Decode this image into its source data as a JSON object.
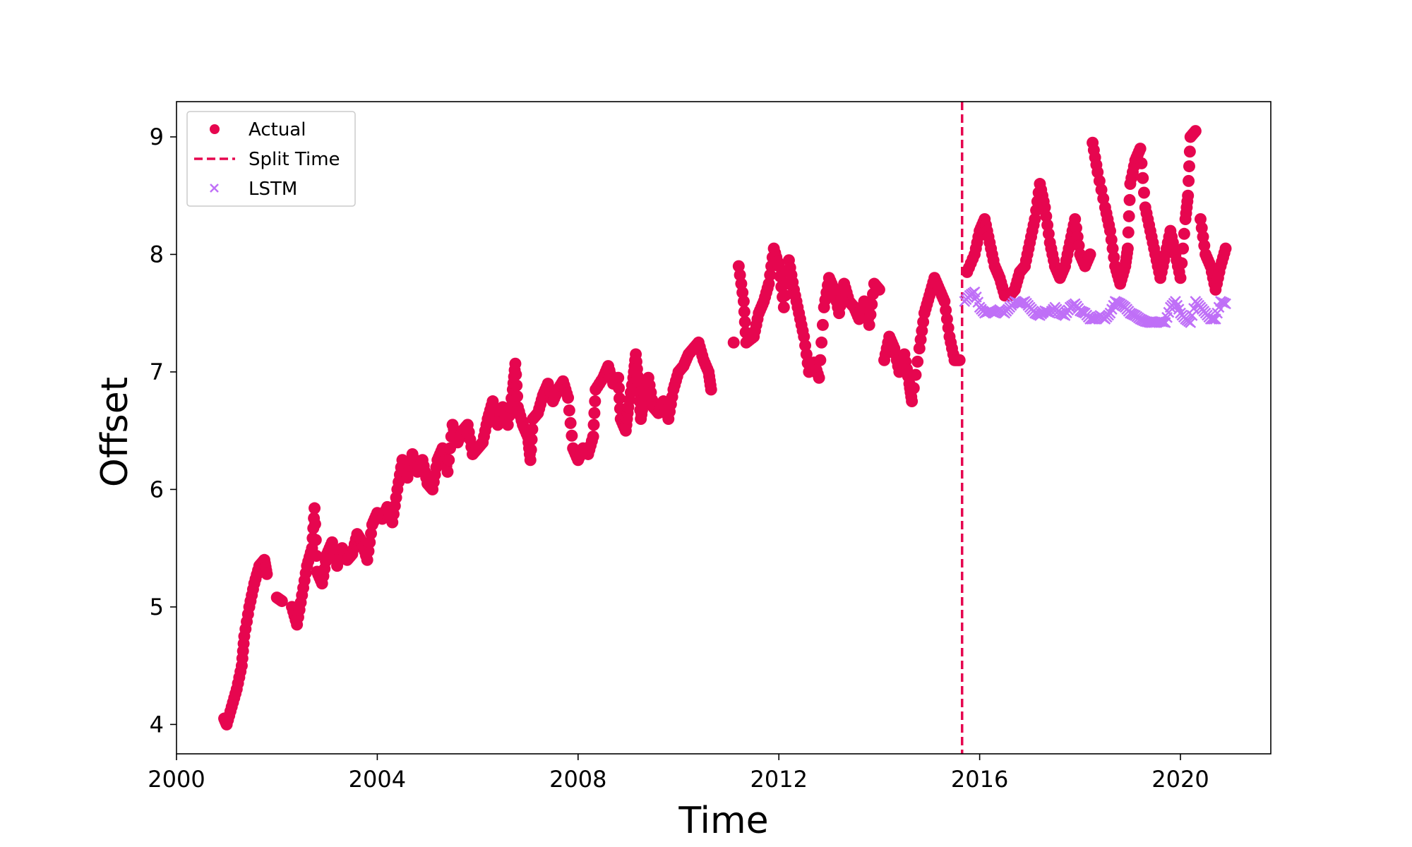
{
  "chart_data": {
    "type": "scatter",
    "title": "",
    "xlabel": "Time",
    "ylabel": "Offset",
    "xlim": [
      2000.0,
      2021.8
    ],
    "ylim": [
      3.75,
      9.3
    ],
    "xticks": [
      2000,
      2004,
      2008,
      2012,
      2016,
      2020
    ],
    "xtick_labels": [
      "2000",
      "2004",
      "2008",
      "2012",
      "2016",
      "2020"
    ],
    "yticks": [
      4,
      5,
      6,
      7,
      8,
      9
    ],
    "ytick_labels": [
      "4",
      "5",
      "6",
      "7",
      "8",
      "9"
    ],
    "grid": false,
    "legend_placement": "top-left",
    "split_time": 2015.65,
    "colors": {
      "actual": "#e6064f",
      "split": "#e6064f",
      "lstm": "#bf6ff7"
    },
    "series": [
      {
        "name": "Actual",
        "marker": "circle",
        "points": [
          [
            2000.95,
            4.05
          ],
          [
            2001.0,
            4.0
          ],
          [
            2001.1,
            4.15
          ],
          [
            2001.2,
            4.3
          ],
          [
            2001.3,
            4.5
          ],
          [
            2001.35,
            4.75
          ],
          [
            2001.45,
            5.0
          ],
          [
            2001.55,
            5.2
          ],
          [
            2001.65,
            5.35
          ],
          [
            2001.75,
            5.4
          ],
          [
            2001.8,
            5.28
          ],
          [
            2002.0,
            5.08
          ],
          [
            2002.1,
            5.05
          ],
          [
            2002.3,
            5.0
          ],
          [
            2002.4,
            4.85
          ],
          [
            2002.5,
            5.1
          ],
          [
            2002.6,
            5.35
          ],
          [
            2002.7,
            5.5
          ],
          [
            2002.75,
            5.84
          ],
          [
            2002.8,
            5.3
          ],
          [
            2002.9,
            5.2
          ],
          [
            2003.0,
            5.45
          ],
          [
            2003.1,
            5.55
          ],
          [
            2003.2,
            5.35
          ],
          [
            2003.3,
            5.5
          ],
          [
            2003.4,
            5.4
          ],
          [
            2003.5,
            5.45
          ],
          [
            2003.6,
            5.62
          ],
          [
            2003.7,
            5.55
          ],
          [
            2003.8,
            5.4
          ],
          [
            2003.9,
            5.7
          ],
          [
            2004.0,
            5.8
          ],
          [
            2004.1,
            5.75
          ],
          [
            2004.2,
            5.85
          ],
          [
            2004.3,
            5.72
          ],
          [
            2004.4,
            6.0
          ],
          [
            2004.5,
            6.25
          ],
          [
            2004.6,
            6.1
          ],
          [
            2004.7,
            6.3
          ],
          [
            2004.8,
            6.15
          ],
          [
            2004.9,
            6.25
          ],
          [
            2005.0,
            6.05
          ],
          [
            2005.1,
            6.0
          ],
          [
            2005.2,
            6.25
          ],
          [
            2005.3,
            6.35
          ],
          [
            2005.4,
            6.15
          ],
          [
            2005.5,
            6.55
          ],
          [
            2005.6,
            6.4
          ],
          [
            2005.7,
            6.5
          ],
          [
            2005.8,
            6.55
          ],
          [
            2005.9,
            6.3
          ],
          [
            2006.0,
            6.35
          ],
          [
            2006.1,
            6.4
          ],
          [
            2006.2,
            6.6
          ],
          [
            2006.3,
            6.75
          ],
          [
            2006.4,
            6.55
          ],
          [
            2006.5,
            6.7
          ],
          [
            2006.6,
            6.55
          ],
          [
            2006.7,
            6.85
          ],
          [
            2006.75,
            7.07
          ],
          [
            2006.8,
            6.7
          ],
          [
            2006.9,
            6.55
          ],
          [
            2007.0,
            6.45
          ],
          [
            2007.05,
            6.25
          ],
          [
            2007.1,
            6.6
          ],
          [
            2007.2,
            6.65
          ],
          [
            2007.3,
            6.8
          ],
          [
            2007.4,
            6.9
          ],
          [
            2007.5,
            6.75
          ],
          [
            2007.6,
            6.85
          ],
          [
            2007.7,
            6.92
          ],
          [
            2007.8,
            6.78
          ],
          [
            2007.9,
            6.35
          ],
          [
            2008.0,
            6.25
          ],
          [
            2008.1,
            6.35
          ],
          [
            2008.2,
            6.3
          ],
          [
            2008.3,
            6.45
          ],
          [
            2008.35,
            6.85
          ],
          [
            2008.5,
            6.95
          ],
          [
            2008.6,
            7.05
          ],
          [
            2008.7,
            6.9
          ],
          [
            2008.8,
            6.95
          ],
          [
            2008.85,
            6.6
          ],
          [
            2008.95,
            6.5
          ],
          [
            2009.0,
            6.7
          ],
          [
            2009.1,
            6.95
          ],
          [
            2009.15,
            7.15
          ],
          [
            2009.2,
            6.9
          ],
          [
            2009.25,
            6.6
          ],
          [
            2009.3,
            6.75
          ],
          [
            2009.4,
            6.95
          ],
          [
            2009.5,
            6.7
          ],
          [
            2009.6,
            6.65
          ],
          [
            2009.7,
            6.75
          ],
          [
            2009.8,
            6.6
          ],
          [
            2009.9,
            6.85
          ],
          [
            2010.0,
            7.0
          ],
          [
            2010.1,
            7.05
          ],
          [
            2010.2,
            7.15
          ],
          [
            2010.3,
            7.2
          ],
          [
            2010.4,
            7.25
          ],
          [
            2010.5,
            7.1
          ],
          [
            2010.6,
            7.0
          ],
          [
            2010.65,
            6.85
          ],
          [
            2011.1,
            7.25
          ],
          [
            2011.2,
            7.9
          ],
          [
            2011.3,
            7.6
          ],
          [
            2011.35,
            7.25
          ],
          [
            2011.5,
            7.3
          ],
          [
            2011.6,
            7.5
          ],
          [
            2011.7,
            7.6
          ],
          [
            2011.8,
            7.75
          ],
          [
            2011.9,
            8.05
          ],
          [
            2012.0,
            7.9
          ],
          [
            2012.1,
            7.55
          ],
          [
            2012.2,
            7.95
          ],
          [
            2012.3,
            7.7
          ],
          [
            2012.4,
            7.5
          ],
          [
            2012.5,
            7.3
          ],
          [
            2012.6,
            7.0
          ],
          [
            2012.7,
            7.08
          ],
          [
            2012.8,
            6.95
          ],
          [
            2012.9,
            7.55
          ],
          [
            2013.0,
            7.8
          ],
          [
            2013.1,
            7.7
          ],
          [
            2013.2,
            7.5
          ],
          [
            2013.3,
            7.75
          ],
          [
            2013.4,
            7.6
          ],
          [
            2013.5,
            7.55
          ],
          [
            2013.6,
            7.45
          ],
          [
            2013.7,
            7.6
          ],
          [
            2013.8,
            7.4
          ],
          [
            2013.9,
            7.75
          ],
          [
            2014.0,
            7.7
          ],
          [
            2014.1,
            7.1
          ],
          [
            2014.2,
            7.3
          ],
          [
            2014.3,
            7.2
          ],
          [
            2014.4,
            7.0
          ],
          [
            2014.5,
            7.15
          ],
          [
            2014.6,
            6.9
          ],
          [
            2014.65,
            6.75
          ],
          [
            2014.8,
            7.2
          ],
          [
            2014.9,
            7.5
          ],
          [
            2015.0,
            7.65
          ],
          [
            2015.1,
            7.8
          ],
          [
            2015.2,
            7.7
          ],
          [
            2015.3,
            7.6
          ],
          [
            2015.4,
            7.3
          ],
          [
            2015.5,
            7.1
          ],
          [
            2015.6,
            7.1
          ],
          [
            2015.75,
            7.85
          ],
          [
            2015.9,
            8.0
          ],
          [
            2016.0,
            8.2
          ],
          [
            2016.1,
            8.3
          ],
          [
            2016.2,
            8.1
          ],
          [
            2016.3,
            7.9
          ],
          [
            2016.4,
            7.8
          ],
          [
            2016.5,
            7.65
          ],
          [
            2016.6,
            7.65
          ],
          [
            2016.7,
            7.7
          ],
          [
            2016.8,
            7.85
          ],
          [
            2016.9,
            7.9
          ],
          [
            2017.0,
            8.1
          ],
          [
            2017.1,
            8.3
          ],
          [
            2017.2,
            8.6
          ],
          [
            2017.3,
            8.4
          ],
          [
            2017.4,
            8.1
          ],
          [
            2017.5,
            7.9
          ],
          [
            2017.6,
            7.8
          ],
          [
            2017.7,
            7.9
          ],
          [
            2017.8,
            8.1
          ],
          [
            2017.9,
            8.3
          ],
          [
            2018.0,
            8.0
          ],
          [
            2018.1,
            7.9
          ],
          [
            2018.2,
            8.0
          ],
          [
            2018.25,
            8.95
          ],
          [
            2018.35,
            8.7
          ],
          [
            2018.5,
            8.4
          ],
          [
            2018.6,
            8.2
          ],
          [
            2018.7,
            7.9
          ],
          [
            2018.8,
            7.75
          ],
          [
            2018.9,
            7.9
          ],
          [
            2018.95,
            8.05
          ],
          [
            2019.0,
            8.6
          ],
          [
            2019.1,
            8.8
          ],
          [
            2019.2,
            8.9
          ],
          [
            2019.3,
            8.4
          ],
          [
            2019.4,
            8.2
          ],
          [
            2019.5,
            8.0
          ],
          [
            2019.6,
            7.8
          ],
          [
            2019.7,
            8.0
          ],
          [
            2019.8,
            8.2
          ],
          [
            2019.9,
            8.0
          ],
          [
            2020.0,
            7.8
          ],
          [
            2020.1,
            8.3
          ],
          [
            2020.15,
            8.5
          ],
          [
            2020.2,
            9.0
          ],
          [
            2020.3,
            9.05
          ],
          [
            2020.4,
            8.3
          ],
          [
            2020.5,
            8.0
          ],
          [
            2020.6,
            7.9
          ],
          [
            2020.7,
            7.7
          ],
          [
            2020.8,
            7.9
          ],
          [
            2020.9,
            8.05
          ]
        ]
      },
      {
        "name": "Split Time",
        "marker": "dashed-line"
      },
      {
        "name": "LSTM",
        "marker": "x",
        "points": [
          [
            2015.7,
            7.6
          ],
          [
            2015.8,
            7.65
          ],
          [
            2015.9,
            7.68
          ],
          [
            2016.0,
            7.55
          ],
          [
            2016.1,
            7.5
          ],
          [
            2016.2,
            7.52
          ],
          [
            2016.3,
            7.5
          ],
          [
            2016.4,
            7.53
          ],
          [
            2016.5,
            7.5
          ],
          [
            2016.6,
            7.55
          ],
          [
            2016.7,
            7.6
          ],
          [
            2016.8,
            7.58
          ],
          [
            2016.9,
            7.6
          ],
          [
            2017.0,
            7.55
          ],
          [
            2017.1,
            7.5
          ],
          [
            2017.2,
            7.48
          ],
          [
            2017.3,
            7.52
          ],
          [
            2017.4,
            7.5
          ],
          [
            2017.5,
            7.55
          ],
          [
            2017.6,
            7.5
          ],
          [
            2017.7,
            7.48
          ],
          [
            2017.8,
            7.55
          ],
          [
            2017.9,
            7.58
          ],
          [
            2018.0,
            7.52
          ],
          [
            2018.1,
            7.5
          ],
          [
            2018.2,
            7.45
          ],
          [
            2018.3,
            7.45
          ],
          [
            2018.4,
            7.48
          ],
          [
            2018.5,
            7.45
          ],
          [
            2018.6,
            7.5
          ],
          [
            2018.7,
            7.6
          ],
          [
            2018.8,
            7.58
          ],
          [
            2018.9,
            7.55
          ],
          [
            2019.0,
            7.5
          ],
          [
            2019.1,
            7.48
          ],
          [
            2019.2,
            7.45
          ],
          [
            2019.3,
            7.43
          ],
          [
            2019.4,
            7.42
          ],
          [
            2019.5,
            7.42
          ],
          [
            2019.6,
            7.43
          ],
          [
            2019.7,
            7.42
          ],
          [
            2019.8,
            7.55
          ],
          [
            2019.9,
            7.6
          ],
          [
            2020.0,
            7.5
          ],
          [
            2020.1,
            7.45
          ],
          [
            2020.2,
            7.42
          ],
          [
            2020.3,
            7.6
          ],
          [
            2020.4,
            7.55
          ],
          [
            2020.5,
            7.5
          ],
          [
            2020.6,
            7.45
          ],
          [
            2020.7,
            7.45
          ],
          [
            2020.8,
            7.6
          ],
          [
            2020.9,
            7.58
          ]
        ]
      }
    ]
  }
}
